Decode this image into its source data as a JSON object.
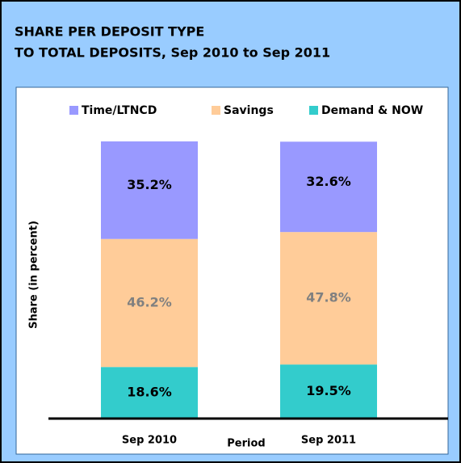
{
  "chart_data": {
    "type": "stacked_bar",
    "title": [
      "SHARE PER DEPOSIT TYPE",
      "TO TOTAL DEPOSITS, Sep 2010 to Sep 2011"
    ],
    "x_label": "Period",
    "y_label": "Share (in percent)",
    "categories": [
      "Sep 2010",
      "Sep 2011"
    ],
    "ylim": [
      0,
      100
    ],
    "legend": "top",
    "series": [
      {
        "name": "Demand & NOW",
        "color": "#33cccc",
        "label_color": "#000000",
        "values": [
          18.6,
          19.5
        ],
        "value_labels": [
          "18.6%",
          "19.5%"
        ]
      },
      {
        "name": "Savings",
        "color": "#ffcc99",
        "label_color": "#808080",
        "values": [
          46.2,
          47.8
        ],
        "value_labels": [
          "46.2%",
          "47.8%"
        ]
      },
      {
        "name": "Time/LTNCD",
        "color": "#9999ff",
        "label_color": "#000000",
        "values": [
          35.2,
          32.6
        ],
        "value_labels": [
          "35.2%",
          "32.6%"
        ]
      }
    ]
  }
}
